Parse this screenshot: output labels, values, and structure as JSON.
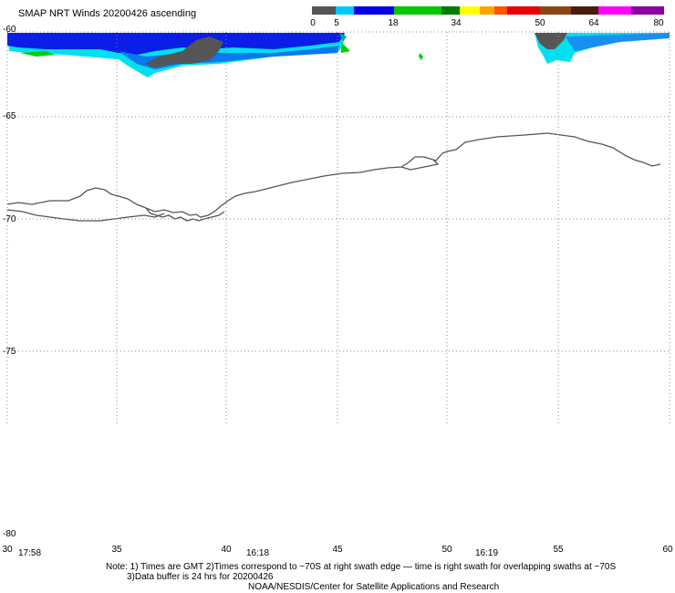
{
  "title": "SMAP NRT Winds 20200426 ascending",
  "colorbar": {
    "segments": [
      {
        "from": 0,
        "to": 5,
        "color": "#555555"
      },
      {
        "from": 5,
        "to": 10,
        "color": "#00c8ff"
      },
      {
        "from": 10,
        "to": 18,
        "color": "#0000e6"
      },
      {
        "from": 18,
        "to": 30,
        "color": "#00c800"
      },
      {
        "from": 30,
        "to": 34,
        "color": "#007a00"
      },
      {
        "from": 34,
        "to": 37,
        "color": "#ffff00"
      },
      {
        "from": 37,
        "to": 40,
        "color": "#ffa500"
      },
      {
        "from": 40,
        "to": 43,
        "color": "#ff5500"
      },
      {
        "from": 43,
        "to": 50,
        "color": "#e60000"
      },
      {
        "from": 50,
        "to": 57,
        "color": "#8b4513"
      },
      {
        "from": 57,
        "to": 64,
        "color": "#4a1c0c"
      },
      {
        "from": 64,
        "to": 72,
        "color": "#ff00ff"
      },
      {
        "from": 72,
        "to": 80,
        "color": "#8b00a0"
      }
    ],
    "tick_labels": [
      "0",
      "5",
      "18",
      "34",
      "50",
      "64",
      "80"
    ]
  },
  "axes": {
    "lat_labels": [
      "-60",
      "-65",
      "-70",
      "-75",
      "-80"
    ],
    "lon_labels": [
      "30",
      "35",
      "40",
      "45",
      "50",
      "55",
      "60"
    ]
  },
  "time_labels": [
    "17:58",
    "16:18",
    "16:19"
  ],
  "notes": {
    "line1": "Note: 1) Times are GMT 2)Times correspond to ~70S at right swath edge — time is right swath for overlapping swaths at ~70S",
    "line2": "3)Data buffer is 24 hrs for 20200426",
    "line3": "NOAA/NESDIS/Center for Satellite Applications and Research"
  }
}
